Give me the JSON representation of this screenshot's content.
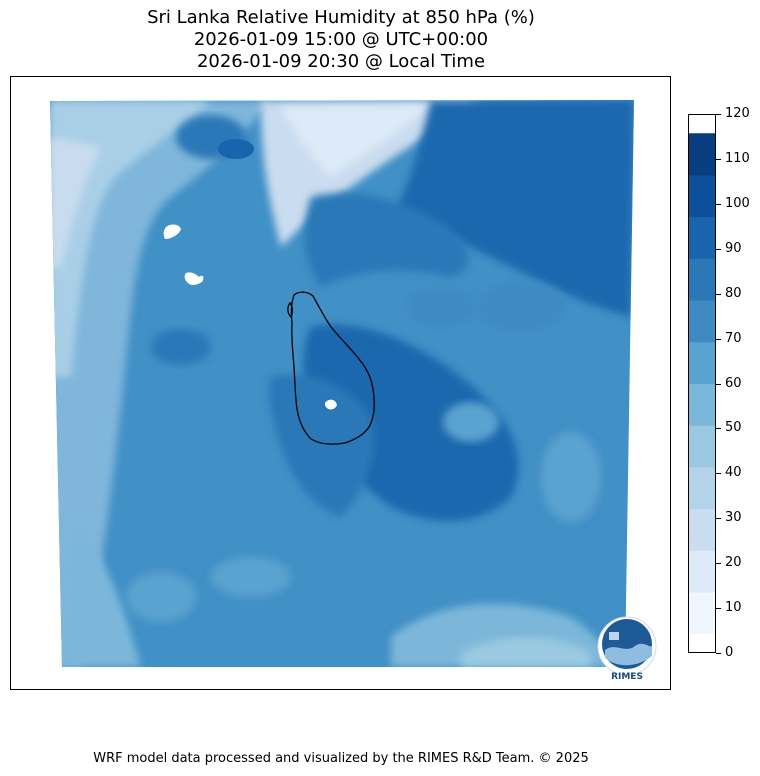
{
  "title": {
    "line1": "Sri Lanka Relative Humidity at 850 hPa (%)",
    "line2": "2026-01-09 15:00 @ UTC+00:00",
    "line3": "2026-01-09 20:30 @ Local Time"
  },
  "colorbar": {
    "levels": [
      0,
      10,
      20,
      30,
      40,
      50,
      60,
      70,
      80,
      90,
      100,
      110,
      120
    ],
    "tick_labels": [
      "0",
      "10",
      "20",
      "30",
      "40",
      "50",
      "60",
      "70",
      "80",
      "90",
      "100",
      "110",
      "120"
    ],
    "colors": [
      "#f0f6fd",
      "#ddeaf7",
      "#cadcef",
      "#b3d3e8",
      "#9ac9e1",
      "#7bb7da",
      "#5aa2cf",
      "#3f8ac3",
      "#2a78b8",
      "#1a64ad",
      "#0c4f9a",
      "#083d7f"
    ]
  },
  "logo": {
    "label": "RIMES"
  },
  "footer": {
    "text": "WRF model data processed and visualized by the RIMES R&D Team. © 2025"
  }
}
